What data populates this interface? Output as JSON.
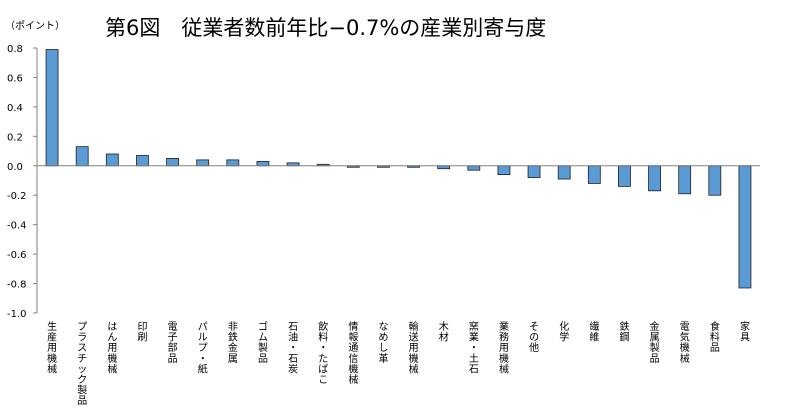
{
  "chart_data": {
    "type": "bar",
    "title": "第6図　従業者数前年比−0.7%の産業別寄与度",
    "unit_label": "（ポイント）",
    "ylim": [
      -1.0,
      0.8
    ],
    "y_ticks": [
      "0.8",
      "0.6",
      "0.4",
      "0.2",
      "0.0",
      "-0.2",
      "-0.4",
      "-0.6",
      "-0.8",
      "-1.0"
    ],
    "grid": false,
    "legend": "none",
    "bar_color": "#5b9bd5",
    "categories": [
      "生産用機械",
      "プラスチック製品",
      "はん用機械",
      "印刷",
      "電子部品",
      "パルプ・紙",
      "非鉄金属",
      "ゴム製品",
      "石油・石炭",
      "飲料・たばこ",
      "情報通信機械",
      "なめし革",
      "輸送用機械",
      "木材",
      "窯業・土石",
      "業務用機械",
      "その他",
      "化学",
      "繊維",
      "鉄鋼",
      "金属製品",
      "電気機械",
      "食料品",
      "家具"
    ],
    "values": [
      0.79,
      0.13,
      0.08,
      0.07,
      0.05,
      0.04,
      0.04,
      0.03,
      0.02,
      0.01,
      -0.01,
      -0.01,
      -0.01,
      -0.02,
      -0.03,
      -0.06,
      -0.08,
      -0.09,
      -0.12,
      -0.14,
      -0.17,
      -0.19,
      -0.2,
      -0.83
    ]
  }
}
